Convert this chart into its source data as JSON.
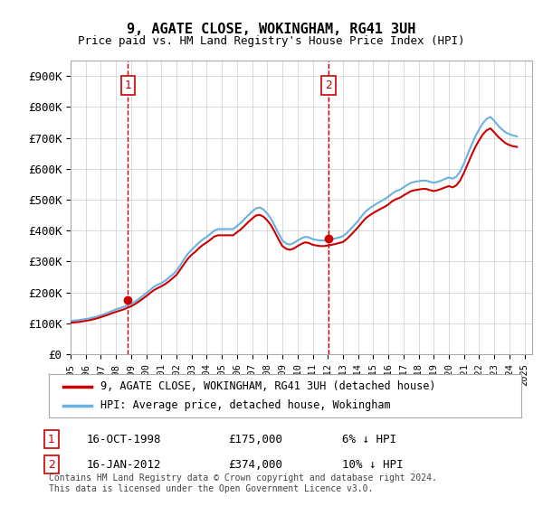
{
  "title": "9, AGATE CLOSE, WOKINGHAM, RG41 3UH",
  "subtitle": "Price paid vs. HM Land Registry's House Price Index (HPI)",
  "ylabel_ticks": [
    "£0",
    "£100K",
    "£200K",
    "£300K",
    "£400K",
    "£500K",
    "£600K",
    "£700K",
    "£800K",
    "£900K"
  ],
  "ytick_values": [
    0,
    100000,
    200000,
    300000,
    400000,
    500000,
    600000,
    700000,
    800000,
    900000
  ],
  "ylim": [
    0,
    950000
  ],
  "xlim_start": 1995.0,
  "xlim_end": 2025.5,
  "purchase1_x": 1998.79,
  "purchase1_y": 175000,
  "purchase1_label": "1",
  "purchase1_date": "16-OCT-1998",
  "purchase1_price": "£175,000",
  "purchase1_hpi": "6% ↓ HPI",
  "purchase2_x": 2012.04,
  "purchase2_y": 374000,
  "purchase2_label": "2",
  "purchase2_date": "16-JAN-2012",
  "purchase2_price": "£374,000",
  "purchase2_hpi": "10% ↓ HPI",
  "hpi_color": "#6ab0e0",
  "price_color": "#cc0000",
  "vline_color": "#cc0000",
  "background_color": "#ffffff",
  "grid_color": "#cccccc",
  "legend_label_price": "9, AGATE CLOSE, WOKINGHAM, RG41 3UH (detached house)",
  "legend_label_hpi": "HPI: Average price, detached house, Wokingham",
  "footer": "Contains HM Land Registry data © Crown copyright and database right 2024.\nThis data is licensed under the Open Government Licence v3.0.",
  "hpi_data_x": [
    1995.0,
    1995.25,
    1995.5,
    1995.75,
    1996.0,
    1996.25,
    1996.5,
    1996.75,
    1997.0,
    1997.25,
    1997.5,
    1997.75,
    1998.0,
    1998.25,
    1998.5,
    1998.75,
    1999.0,
    1999.25,
    1999.5,
    1999.75,
    2000.0,
    2000.25,
    2000.5,
    2000.75,
    2001.0,
    2001.25,
    2001.5,
    2001.75,
    2002.0,
    2002.25,
    2002.5,
    2002.75,
    2003.0,
    2003.25,
    2003.5,
    2003.75,
    2004.0,
    2004.25,
    2004.5,
    2004.75,
    2005.0,
    2005.25,
    2005.5,
    2005.75,
    2006.0,
    2006.25,
    2006.5,
    2006.75,
    2007.0,
    2007.25,
    2007.5,
    2007.75,
    2008.0,
    2008.25,
    2008.5,
    2008.75,
    2009.0,
    2009.25,
    2009.5,
    2009.75,
    2010.0,
    2010.25,
    2010.5,
    2010.75,
    2011.0,
    2011.25,
    2011.5,
    2011.75,
    2012.0,
    2012.25,
    2012.5,
    2012.75,
    2013.0,
    2013.25,
    2013.5,
    2013.75,
    2014.0,
    2014.25,
    2014.5,
    2014.75,
    2015.0,
    2015.25,
    2015.5,
    2015.75,
    2016.0,
    2016.25,
    2016.5,
    2016.75,
    2017.0,
    2017.25,
    2017.5,
    2017.75,
    2018.0,
    2018.25,
    2018.5,
    2018.75,
    2019.0,
    2019.25,
    2019.5,
    2019.75,
    2020.0,
    2020.25,
    2020.5,
    2020.75,
    2021.0,
    2021.25,
    2021.5,
    2021.75,
    2022.0,
    2022.25,
    2022.5,
    2022.75,
    2023.0,
    2023.25,
    2023.5,
    2023.75,
    2024.0,
    2024.25,
    2024.5
  ],
  "hpi_data_y": [
    108000,
    109000,
    110000,
    112000,
    114000,
    116000,
    119000,
    122000,
    126000,
    130000,
    135000,
    140000,
    145000,
    149000,
    153000,
    158000,
    163000,
    170000,
    178000,
    188000,
    198000,
    208000,
    218000,
    225000,
    230000,
    238000,
    248000,
    258000,
    270000,
    288000,
    308000,
    325000,
    338000,
    350000,
    362000,
    372000,
    380000,
    390000,
    400000,
    405000,
    405000,
    405000,
    405000,
    405000,
    415000,
    425000,
    438000,
    450000,
    462000,
    472000,
    475000,
    468000,
    455000,
    438000,
    415000,
    390000,
    368000,
    358000,
    355000,
    360000,
    368000,
    375000,
    380000,
    378000,
    372000,
    370000,
    368000,
    368000,
    370000,
    372000,
    375000,
    378000,
    382000,
    392000,
    405000,
    418000,
    432000,
    448000,
    462000,
    472000,
    480000,
    488000,
    495000,
    502000,
    510000,
    520000,
    528000,
    532000,
    540000,
    548000,
    555000,
    558000,
    560000,
    562000,
    562000,
    558000,
    555000,
    558000,
    562000,
    568000,
    572000,
    568000,
    575000,
    592000,
    618000,
    648000,
    678000,
    705000,
    728000,
    748000,
    762000,
    768000,
    755000,
    740000,
    728000,
    718000,
    712000,
    708000,
    705000
  ],
  "price_data_x": [
    1995.0,
    1995.25,
    1995.5,
    1995.75,
    1996.0,
    1996.25,
    1996.5,
    1996.75,
    1997.0,
    1997.25,
    1997.5,
    1997.75,
    1998.0,
    1998.25,
    1998.5,
    1998.75,
    1999.0,
    1999.25,
    1999.5,
    1999.75,
    2000.0,
    2000.25,
    2000.5,
    2000.75,
    2001.0,
    2001.25,
    2001.5,
    2001.75,
    2002.0,
    2002.25,
    2002.5,
    2002.75,
    2003.0,
    2003.25,
    2003.5,
    2003.75,
    2004.0,
    2004.25,
    2004.5,
    2004.75,
    2005.0,
    2005.25,
    2005.5,
    2005.75,
    2006.0,
    2006.25,
    2006.5,
    2006.75,
    2007.0,
    2007.25,
    2007.5,
    2007.75,
    2008.0,
    2008.25,
    2008.5,
    2008.75,
    2009.0,
    2009.25,
    2009.5,
    2009.75,
    2010.0,
    2010.25,
    2010.5,
    2010.75,
    2011.0,
    2011.25,
    2011.5,
    2011.75,
    2012.0,
    2012.25,
    2012.5,
    2012.75,
    2013.0,
    2013.25,
    2013.5,
    2013.75,
    2014.0,
    2014.25,
    2014.5,
    2014.75,
    2015.0,
    2015.25,
    2015.5,
    2015.75,
    2016.0,
    2016.25,
    2016.5,
    2016.75,
    2017.0,
    2017.25,
    2017.5,
    2017.75,
    2018.0,
    2018.25,
    2018.5,
    2018.75,
    2019.0,
    2019.25,
    2019.5,
    2019.75,
    2020.0,
    2020.25,
    2020.5,
    2020.75,
    2021.0,
    2021.25,
    2021.5,
    2021.75,
    2022.0,
    2022.25,
    2022.5,
    2022.75,
    2023.0,
    2023.25,
    2023.5,
    2023.75,
    2024.0,
    2024.25,
    2024.5
  ],
  "price_data_y": [
    102000,
    103000,
    104000,
    106000,
    108000,
    110000,
    113000,
    116000,
    120000,
    124000,
    128000,
    133000,
    137000,
    141000,
    145000,
    150000,
    155000,
    162000,
    170000,
    179000,
    188000,
    198000,
    207000,
    214000,
    220000,
    227000,
    236000,
    246000,
    257000,
    274000,
    292000,
    309000,
    322000,
    332000,
    344000,
    354000,
    362000,
    371000,
    381000,
    385000,
    385000,
    385000,
    385000,
    385000,
    395000,
    404000,
    416000,
    428000,
    439000,
    449000,
    451000,
    445000,
    433000,
    417000,
    395000,
    371000,
    350000,
    341000,
    338000,
    342000,
    350000,
    357000,
    362000,
    360000,
    354000,
    352000,
    350000,
    350000,
    352000,
    354000,
    357000,
    360000,
    363000,
    373000,
    385000,
    398000,
    411000,
    426000,
    440000,
    449000,
    457000,
    464000,
    471000,
    477000,
    485000,
    495000,
    502000,
    506000,
    514000,
    521000,
    528000,
    531000,
    533000,
    535000,
    535000,
    531000,
    528000,
    531000,
    535000,
    540000,
    544000,
    540000,
    547000,
    563000,
    588000,
    616000,
    645000,
    671000,
    693000,
    712000,
    725000,
    731000,
    718000,
    704000,
    693000,
    683000,
    677000,
    673000,
    671000
  ]
}
